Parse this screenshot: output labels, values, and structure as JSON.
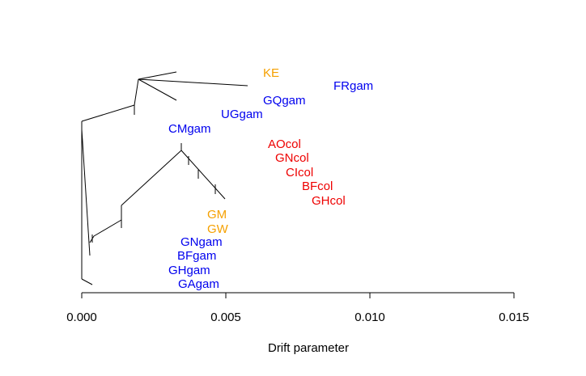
{
  "chart_data": {
    "type": "tree",
    "xlabel": "Drift parameter",
    "xlim": [
      0.0,
      0.015
    ],
    "xticks": [
      0.0,
      0.005,
      0.01,
      0.015
    ],
    "xtick_labels": [
      "0.000",
      "0.005",
      "0.010",
      "0.015"
    ],
    "colors": {
      "orange": "#f5a000",
      "blue": "#0000ee",
      "red": "#ee0000",
      "line": "#000000"
    },
    "tips": [
      {
        "label": "KE",
        "drift": 0.0064,
        "color": "orange"
      },
      {
        "label": "FRgam",
        "drift": 0.0088,
        "color": "blue"
      },
      {
        "label": "GQgam",
        "drift": 0.0063,
        "color": "blue"
      },
      {
        "label": "UGgam",
        "drift": 0.0049,
        "color": "blue"
      },
      {
        "label": "CMgam",
        "drift": 0.003,
        "color": "blue"
      },
      {
        "label": "AOcol",
        "drift": 0.0065,
        "color": "red"
      },
      {
        "label": "GNcol",
        "drift": 0.0067,
        "color": "red"
      },
      {
        "label": "CIcol",
        "drift": 0.0071,
        "color": "red"
      },
      {
        "label": "BFcol",
        "drift": 0.0077,
        "color": "red"
      },
      {
        "label": "GHcol",
        "drift": 0.008,
        "color": "red"
      },
      {
        "label": "GM",
        "drift": 0.0044,
        "color": "orange"
      },
      {
        "label": "GW",
        "drift": 0.0044,
        "color": "orange"
      },
      {
        "label": "GNgam",
        "drift": 0.0034,
        "color": "blue"
      },
      {
        "label": "BFgam",
        "drift": 0.0033,
        "color": "blue"
      },
      {
        "label": "GHgam",
        "drift": 0.003,
        "color": "blue"
      },
      {
        "label": "GAgam",
        "drift": 0.0033,
        "color": "blue"
      }
    ]
  }
}
